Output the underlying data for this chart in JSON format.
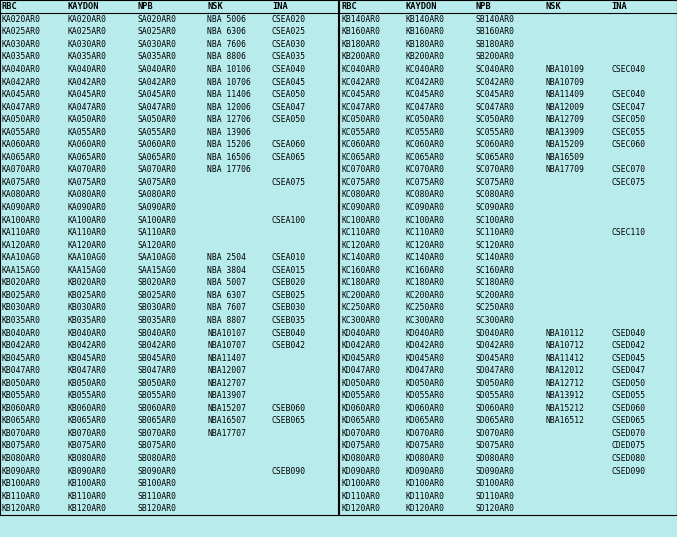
{
  "background_color": "#b8ecec",
  "font_size": 5.8,
  "header_font_size": 6.2,
  "columns_left": [
    "RBC",
    "KAYDON",
    "NPB",
    "NSK",
    "INA"
  ],
  "columns_right": [
    "RBC",
    "KAYDON",
    "NPB",
    "NSK",
    "INA"
  ],
  "left_data": [
    [
      "KA020AR0",
      "KA020AR0",
      "SA020AR0",
      "NBA 5006",
      "CSEA020"
    ],
    [
      "KA025AR0",
      "KA025AR0",
      "SA025AR0",
      "NBA 6306",
      "CSEA025"
    ],
    [
      "KA030AR0",
      "KA030AR0",
      "SA030AR0",
      "NBA 7606",
      "CSEA030"
    ],
    [
      "KA035AR0",
      "KA035AR0",
      "SA035AR0",
      "NBA 8806",
      "CSEA035"
    ],
    [
      "KA040AR0",
      "KA040AR0",
      "SA040AR0",
      "NBA 10106",
      "CSEA040"
    ],
    [
      "KA042AR0",
      "KA042AR0",
      "SA042AR0",
      "NBA 10706",
      "CSEA045"
    ],
    [
      "KA045AR0",
      "KA045AR0",
      "SA045AR0",
      "NBA 11406",
      "CSEA050"
    ],
    [
      "KA047AR0",
      "KA047AR0",
      "SA047AR0",
      "NBA 12006",
      "CSEA047"
    ],
    [
      "KA050AR0",
      "KA050AR0",
      "SA050AR0",
      "NBA 12706",
      "CSEA050"
    ],
    [
      "KA055AR0",
      "KA055AR0",
      "SA055AR0",
      "NBA 13906",
      ""
    ],
    [
      "KA060AR0",
      "KA060AR0",
      "SA060AR0",
      "NBA 15206",
      "CSEA060"
    ],
    [
      "KA065AR0",
      "KA065AR0",
      "SA065AR0",
      "NBA 16506",
      "CSEA065"
    ],
    [
      "KA070AR0",
      "KA070AR0",
      "SA070AR0",
      "NBA 17706",
      ""
    ],
    [
      "KA075AR0",
      "KA075AR0",
      "SA075AR0",
      "",
      "CSEA075"
    ],
    [
      "KA080AR0",
      "KA080AR0",
      "SA080AR0",
      "",
      ""
    ],
    [
      "KA090AR0",
      "KA090AR0",
      "SA090AR0",
      "",
      ""
    ],
    [
      "KA100AR0",
      "KA100AR0",
      "SA100AR0",
      "",
      "CSEA100"
    ],
    [
      "KA110AR0",
      "KA110AR0",
      "SA110AR0",
      "",
      ""
    ],
    [
      "KA120AR0",
      "KA120AR0",
      "SA120AR0",
      "",
      ""
    ],
    [
      "KAA10AG0",
      "KAA10AG0",
      "SAA10AG0",
      "NBA 2504",
      "CSEA010"
    ],
    [
      "KAA15AG0",
      "KAA15AG0",
      "SAA15AG0",
      "NBA 3804",
      "CSEA015"
    ],
    [
      "KB020AR0",
      "KB020AR0",
      "SB020AR0",
      "NBA 5007",
      "CSEB020"
    ],
    [
      "KB025AR0",
      "KB025AR0",
      "SB025AR0",
      "NBA 6307",
      "CSEB025"
    ],
    [
      "KB030AR0",
      "KB030AR0",
      "SB030AR0",
      "NBA 7607",
      "CSEB030"
    ],
    [
      "KB035AR0",
      "KB035AR0",
      "SB035AR0",
      "NBA 8807",
      "CSEB035"
    ],
    [
      "KB040AR0",
      "KB040AR0",
      "SB040AR0",
      "NBA10107",
      "CSEB040"
    ],
    [
      "KB042AR0",
      "KB042AR0",
      "SB042AR0",
      "NBA10707",
      "CSEB042"
    ],
    [
      "KB045AR0",
      "KB045AR0",
      "SB045AR0",
      "NBA11407",
      ""
    ],
    [
      "KB047AR0",
      "KB047AR0",
      "SB047AR0",
      "NBA12007",
      ""
    ],
    [
      "KB050AR0",
      "KB050AR0",
      "SB050AR0",
      "NBA12707",
      ""
    ],
    [
      "KB055AR0",
      "KB055AR0",
      "SB055AR0",
      "NBA13907",
      ""
    ],
    [
      "KB060AR0",
      "KB060AR0",
      "SB060AR0",
      "NBA15207",
      "CSEB060"
    ],
    [
      "KB065AR0",
      "KB065AR0",
      "SB065AR0",
      "NBA16507",
      "CSEB065"
    ],
    [
      "KB070AR0",
      "KB070AR0",
      "SB070AR0",
      "NBA17707",
      ""
    ],
    [
      "KB075AR0",
      "KB075AR0",
      "SB075AR0",
      "",
      ""
    ],
    [
      "KB080AR0",
      "KB080AR0",
      "SB080AR0",
      "",
      ""
    ],
    [
      "KB090AR0",
      "KB090AR0",
      "SB090AR0",
      "",
      "CSEB090"
    ],
    [
      "KB100AR0",
      "KB100AR0",
      "SB100AR0",
      "",
      ""
    ],
    [
      "KB110AR0",
      "KB110AR0",
      "SB110AR0",
      "",
      ""
    ],
    [
      "KB120AR0",
      "KB120AR0",
      "SB120AR0",
      "",
      ""
    ]
  ],
  "right_data": [
    [
      "KB140AR0",
      "KB140AR0",
      "SB140AR0",
      "",
      ""
    ],
    [
      "KB160AR0",
      "KB160AR0",
      "SB160AR0",
      "",
      ""
    ],
    [
      "KB180AR0",
      "KB180AR0",
      "SB180AR0",
      "",
      ""
    ],
    [
      "KB200AR0",
      "KB200AR0",
      "SB200AR0",
      "",
      ""
    ],
    [
      "KC040AR0",
      "KC040AR0",
      "SC040AR0",
      "NBA10109",
      "CSEC040"
    ],
    [
      "KC042AR0",
      "KC042AR0",
      "SC042AR0",
      "NBA10709",
      ""
    ],
    [
      "KC045AR0",
      "KC045AR0",
      "SC045AR0",
      "NBA11409",
      "CSEC040"
    ],
    [
      "KC047AR0",
      "KC047AR0",
      "SC047AR0",
      "NBA12009",
      "CSEC047"
    ],
    [
      "KC050AR0",
      "KC050AR0",
      "SC050AR0",
      "NBA12709",
      "CSEC050"
    ],
    [
      "KC055AR0",
      "KC055AR0",
      "SC055AR0",
      "NBA13909",
      "CSEC055"
    ],
    [
      "KC060AR0",
      "KC060AR0",
      "SC060AR0",
      "NBA15209",
      "CSEC060"
    ],
    [
      "KC065AR0",
      "KC065AR0",
      "SC065AR0",
      "NBA16509",
      ""
    ],
    [
      "KC070AR0",
      "KC070AR0",
      "SC070AR0",
      "NBA17709",
      "CSEC070"
    ],
    [
      "KC075AR0",
      "KC075AR0",
      "SC075AR0",
      "",
      "CSEC075"
    ],
    [
      "KC080AR0",
      "KC080AR0",
      "SC080AR0",
      "",
      ""
    ],
    [
      "KC090AR0",
      "KC090AR0",
      "SC090AR0",
      "",
      ""
    ],
    [
      "KC100AR0",
      "KC100AR0",
      "SC100AR0",
      "",
      ""
    ],
    [
      "KC110AR0",
      "KC110AR0",
      "SC110AR0",
      "",
      "CSEC110"
    ],
    [
      "KC120AR0",
      "KC120AR0",
      "SC120AR0",
      "",
      ""
    ],
    [
      "KC140AR0",
      "KC140AR0",
      "SC140AR0",
      "",
      ""
    ],
    [
      "KC160AR0",
      "KC160AR0",
      "SC160AR0",
      "",
      ""
    ],
    [
      "KC180AR0",
      "KC180AR0",
      "SC180AR0",
      "",
      ""
    ],
    [
      "KC200AR0",
      "KC200AR0",
      "SC200AR0",
      "",
      ""
    ],
    [
      "KC250AR0",
      "KC250AR0",
      "SC250AR0",
      "",
      ""
    ],
    [
      "KC300AR0",
      "KC300AR0",
      "SC300AR0",
      "",
      ""
    ],
    [
      "KD040AR0",
      "KD040AR0",
      "SD040AR0",
      "NBA10112",
      "CSED040"
    ],
    [
      "KD042AR0",
      "KD042AR0",
      "SD042AR0",
      "NBA10712",
      "CSED042"
    ],
    [
      "KD045AR0",
      "KD045AR0",
      "SD045AR0",
      "NBA11412",
      "CSED045"
    ],
    [
      "KD047AR0",
      "KD047AR0",
      "SD047AR0",
      "NBA12012",
      "CSED047"
    ],
    [
      "KD050AR0",
      "KD050AR0",
      "SD050AR0",
      "NBA12712",
      "CSED050"
    ],
    [
      "KD055AR0",
      "KD055AR0",
      "SD055AR0",
      "NBA13912",
      "CSED055"
    ],
    [
      "KD060AR0",
      "KD060AR0",
      "SD060AR0",
      "NBA15212",
      "CSED060"
    ],
    [
      "KD065AR0",
      "KD065AR0",
      "SD065AR0",
      "NBA16512",
      "CSED065"
    ],
    [
      "KD070AR0",
      "KD070AR0",
      "SD070AR0",
      "",
      "CSED070"
    ],
    [
      "KD075AR0",
      "KD075AR0",
      "SD075AR0",
      "",
      "CDED075"
    ],
    [
      "KD080AR0",
      "KD080AR0",
      "SD080AR0",
      "",
      "CSED080"
    ],
    [
      "KD090AR0",
      "KD090AR0",
      "SD090AR0",
      "",
      "CSED090"
    ],
    [
      "KD100AR0",
      "KD100AR0",
      "SD100AR0",
      "",
      ""
    ],
    [
      "KD110AR0",
      "KD110AR0",
      "SD110AR0",
      "",
      ""
    ],
    [
      "KD120AR0",
      "KD120AR0",
      "SD120AR0",
      "",
      ""
    ]
  ],
  "line_color": "#000000",
  "text_color": "#000000"
}
